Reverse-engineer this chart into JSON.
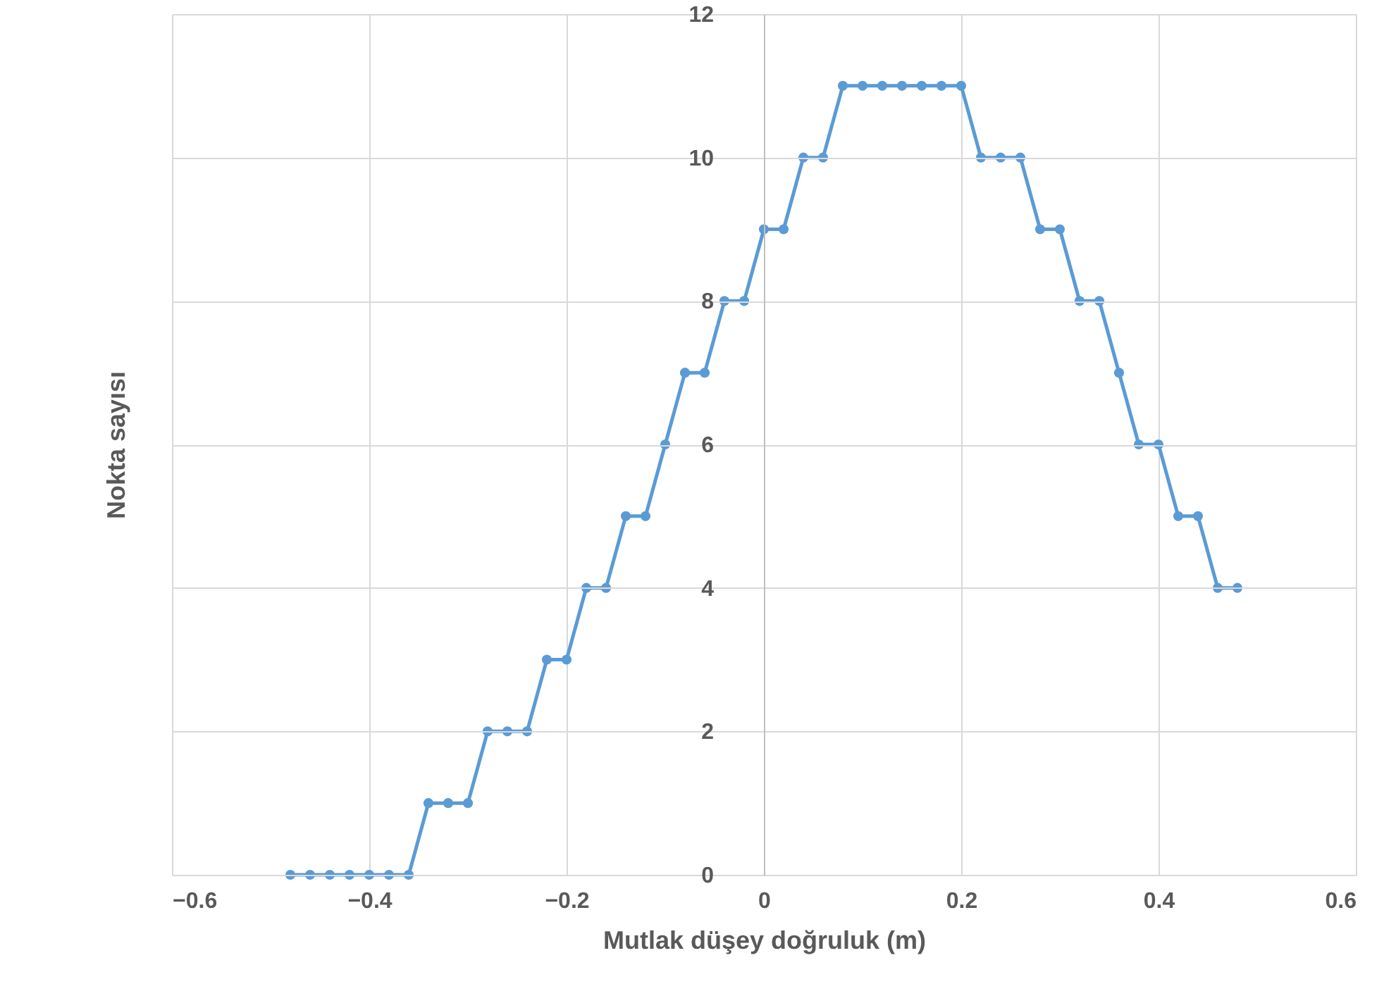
{
  "chart_data": {
    "type": "line",
    "xlabel": "Mutlak düşey doğruluk (m)",
    "ylabel": "Nokta sayısı",
    "x": [
      -0.48,
      -0.46,
      -0.44,
      -0.42,
      -0.4,
      -0.38,
      -0.36,
      -0.34,
      -0.32,
      -0.3,
      -0.28,
      -0.26,
      -0.24,
      -0.22,
      -0.2,
      -0.18,
      -0.16,
      -0.14,
      -0.12,
      -0.1,
      -0.08,
      -0.06,
      -0.04,
      -0.02,
      0,
      0.02,
      0.04,
      0.06,
      0.08,
      0.1,
      0.12,
      0.14,
      0.16,
      0.18,
      0.2,
      0.22,
      0.24,
      0.26,
      0.28,
      0.3,
      0.32,
      0.34,
      0.36,
      0.38,
      0.4,
      0.42,
      0.44,
      0.46,
      0.48
    ],
    "series": [
      {
        "color": "#5b9bd5",
        "values": [
          0,
          0,
          0,
          0,
          0,
          0,
          0,
          1,
          1,
          1,
          2,
          2,
          2,
          3,
          3,
          4,
          4,
          5,
          5,
          6,
          7,
          7,
          8,
          8,
          9,
          9,
          10,
          10,
          11,
          11,
          11,
          11,
          11,
          11,
          11,
          10,
          10,
          10,
          9,
          9,
          8,
          8,
          7,
          6,
          6,
          5,
          5,
          4,
          4
        ]
      }
    ],
    "xlim": [
      -0.6,
      0.6
    ],
    "xticks": [
      -0.6,
      -0.4,
      -0.2,
      0,
      0.2,
      0.4,
      0.6
    ],
    "ylim": [
      0,
      12
    ],
    "yticks": [
      0,
      2,
      4,
      6,
      8,
      10,
      12
    ],
    "grid": true,
    "marker": "circle",
    "line_style": "solid"
  }
}
